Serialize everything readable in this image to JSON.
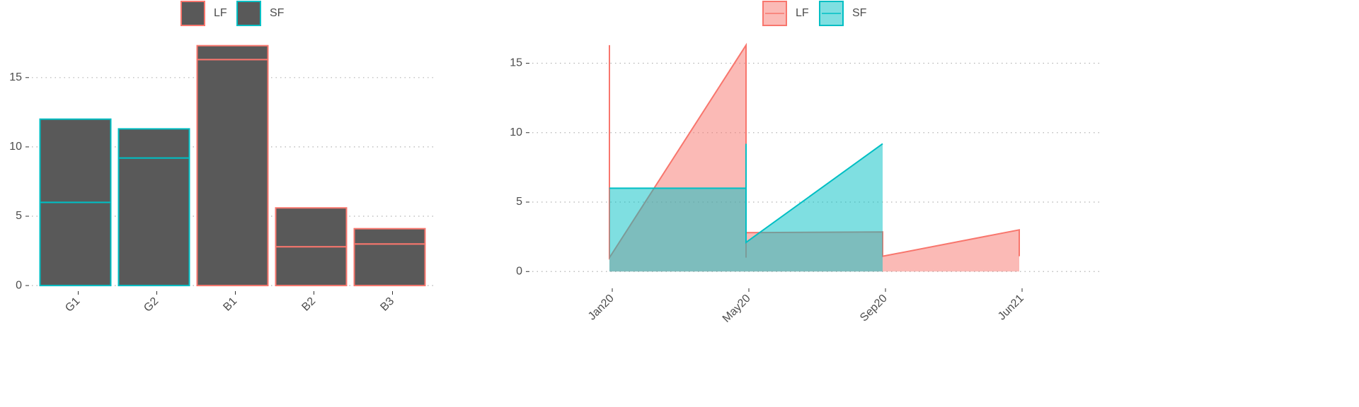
{
  "chart_data": [
    {
      "type": "bar",
      "categories": [
        "G1",
        "G2",
        "B1",
        "B2",
        "B3"
      ],
      "values": [
        [
          6,
          6
        ],
        [
          9.2,
          2.1
        ],
        [
          16.3,
          1.0
        ],
        [
          2.8,
          2.8
        ],
        [
          3.0,
          1.1
        ]
      ],
      "groups": [
        "SF",
        "SF",
        "LF",
        "LF",
        "LF"
      ],
      "fill": "#595959",
      "legend": [
        {
          "name": "LF",
          "color": "#F8766D"
        },
        {
          "name": "SF",
          "color": "#00BFC4"
        }
      ],
      "ylim": [
        -0.3,
        18.2
      ],
      "yticks": [
        0,
        5,
        10,
        15
      ],
      "grid": true
    },
    {
      "type": "area",
      "xticks": [
        "Jan20",
        "May20",
        "Sep20",
        "Jun21"
      ],
      "series": [
        {
          "name": "LF",
          "color": "#F8766D",
          "x": [
            "Jan20",
            "Jan20",
            "May20",
            "May20",
            "May20",
            "Sep20",
            "Sep20",
            "Jun21",
            "Jun21"
          ],
          "values": [
            16.3,
            1.0,
            16.3,
            1.0,
            2.8,
            2.85,
            1.1,
            3.0,
            1.1
          ]
        },
        {
          "name": "SF",
          "color": "#00BFC4",
          "x": [
            "Jan20",
            "May20",
            "May20",
            "May20",
            "Sep20"
          ],
          "values": [
            6.0,
            6.0,
            9.2,
            2.1,
            9.2
          ]
        }
      ],
      "ylim": [
        -0.8,
        16.5
      ],
      "yticks": [
        0,
        5,
        10,
        15
      ],
      "grid": true
    }
  ]
}
